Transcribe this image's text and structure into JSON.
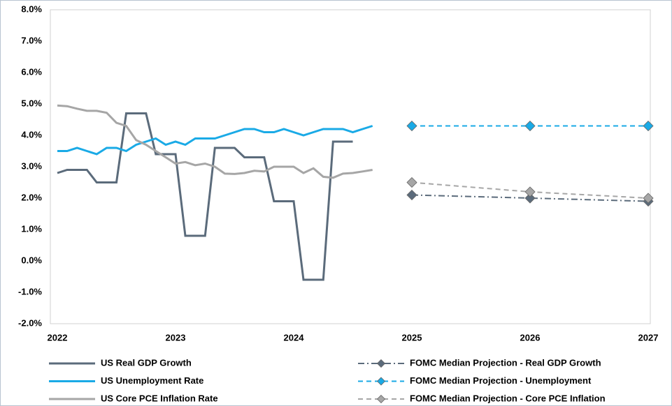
{
  "chart_data": {
    "type": "line",
    "xlim": [
      2022,
      2027
    ],
    "xticks": [
      2022,
      2023,
      2024,
      2025,
      2026,
      2027
    ],
    "ylim": [
      -2,
      8
    ],
    "yticks": [
      {
        "value": -2,
        "label": "-2.0%"
      },
      {
        "value": -1,
        "label": "-1.0%"
      },
      {
        "value": 0,
        "label": "0.0%"
      },
      {
        "value": 1,
        "label": "1.0%"
      },
      {
        "value": 2,
        "label": "2.0%"
      },
      {
        "value": 3,
        "label": "3.0%"
      },
      {
        "value": 4,
        "label": "4.0%"
      },
      {
        "value": 5,
        "label": "5.0%"
      },
      {
        "value": 6,
        "label": "6.0%"
      },
      {
        "value": 7,
        "label": "7.0%"
      },
      {
        "value": 8,
        "label": "8.0%"
      }
    ],
    "grid": false,
    "series": [
      {
        "name": "US Real GDP Growth",
        "color": "#5b6b7b",
        "style": "solid",
        "x": [
          2022.0,
          2022.083,
          2022.167,
          2022.25,
          2022.333,
          2022.417,
          2022.5,
          2022.583,
          2022.667,
          2022.75,
          2022.833,
          2022.917,
          2023.0,
          2023.083,
          2023.167,
          2023.25,
          2023.333,
          2023.417,
          2023.5,
          2023.583,
          2023.667,
          2023.75,
          2023.833,
          2023.917,
          2024.0,
          2024.083,
          2024.167,
          2024.25,
          2024.333,
          2024.417,
          2024.5
        ],
        "values": [
          2.8,
          2.9,
          2.9,
          2.9,
          2.5,
          2.5,
          2.5,
          4.7,
          4.7,
          4.7,
          3.4,
          3.4,
          3.4,
          0.8,
          0.8,
          0.8,
          3.6,
          3.6,
          3.6,
          3.3,
          3.3,
          3.3,
          1.9,
          1.9,
          1.9,
          -0.6,
          -0.6,
          -0.6,
          3.8,
          3.8,
          3.8
        ]
      },
      {
        "name": "FOMC Median Projection - Real GDP Growth",
        "color": "#5b6b7b",
        "style": "dashdot",
        "marker": "diamond",
        "x": [
          2025,
          2026,
          2027
        ],
        "values": [
          2.1,
          2.0,
          1.9
        ]
      },
      {
        "name": "US Unemployment Rate",
        "color": "#1aaae6",
        "style": "solid",
        "x": [
          2022.0,
          2022.083,
          2022.167,
          2022.25,
          2022.333,
          2022.417,
          2022.5,
          2022.583,
          2022.667,
          2022.75,
          2022.833,
          2022.917,
          2023.0,
          2023.083,
          2023.167,
          2023.25,
          2023.333,
          2023.417,
          2023.5,
          2023.583,
          2023.667,
          2023.75,
          2023.833,
          2023.917,
          2024.0,
          2024.083,
          2024.167,
          2024.25,
          2024.333,
          2024.417,
          2024.5,
          2024.583,
          2024.667
        ],
        "values": [
          3.5,
          3.5,
          3.6,
          3.5,
          3.4,
          3.6,
          3.6,
          3.5,
          3.7,
          3.8,
          3.9,
          3.7,
          3.8,
          3.7,
          3.9,
          3.9,
          3.9,
          4.0,
          4.1,
          4.2,
          4.2,
          4.1,
          4.1,
          4.2,
          4.1,
          4.0,
          4.1,
          4.2,
          4.2,
          4.2,
          4.1,
          4.2,
          4.3
        ]
      },
      {
        "name": "FOMC Median Projection - Unemployment",
        "color": "#1aaae6",
        "style": "dashed",
        "marker": "diamond",
        "x": [
          2025,
          2026,
          2027
        ],
        "values": [
          4.3,
          4.3,
          4.3
        ]
      },
      {
        "name": "US Core PCE Inflation Rate",
        "color": "#a6a6a6",
        "style": "solid",
        "x": [
          2022.0,
          2022.083,
          2022.167,
          2022.25,
          2022.333,
          2022.417,
          2022.5,
          2022.583,
          2022.667,
          2022.75,
          2022.833,
          2022.917,
          2023.0,
          2023.083,
          2023.167,
          2023.25,
          2023.333,
          2023.417,
          2023.5,
          2023.583,
          2023.667,
          2023.75,
          2023.833,
          2023.917,
          2024.0,
          2024.083,
          2024.167,
          2024.25,
          2024.333,
          2024.417,
          2024.5,
          2024.583,
          2024.667
        ],
        "values": [
          4.95,
          4.93,
          4.85,
          4.78,
          4.78,
          4.72,
          4.4,
          4.3,
          3.85,
          3.7,
          3.5,
          3.3,
          3.1,
          3.15,
          3.05,
          3.1,
          3.0,
          2.78,
          2.77,
          2.8,
          2.87,
          2.85,
          3.0,
          3.0,
          3.0,
          2.8,
          2.95,
          2.68,
          2.65,
          2.78,
          2.8,
          2.85,
          2.9
        ]
      },
      {
        "name": "FOMC Median Projection - Core PCE Inflation",
        "color": "#a6a6a6",
        "style": "dashed",
        "marker": "diamond",
        "x": [
          2025,
          2026,
          2027
        ],
        "values": [
          2.5,
          2.2,
          2.0
        ]
      }
    ]
  }
}
